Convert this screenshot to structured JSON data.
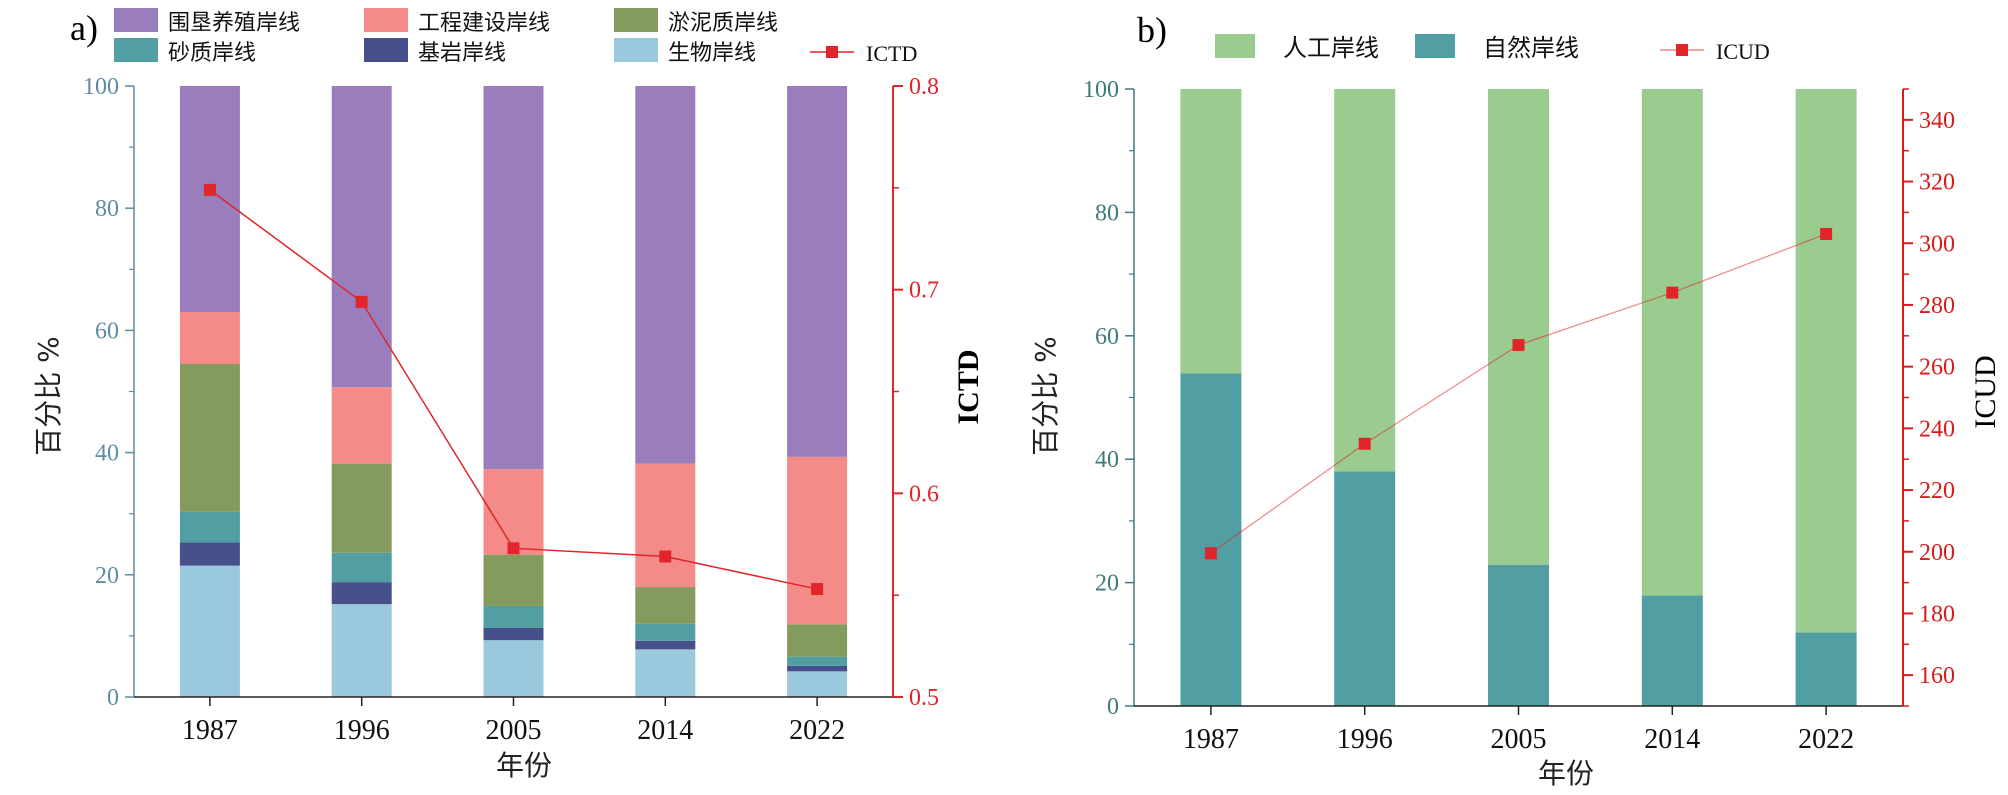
{
  "chart_data": [
    {
      "panel_label": "a)",
      "type": "bar",
      "stacked": true,
      "categories": [
        "1987",
        "1996",
        "2005",
        "2014",
        "2022"
      ],
      "xlabel": "年份",
      "ylabel": "百分比 %",
      "ylim": [
        0,
        100
      ],
      "yticks": [
        0,
        20,
        40,
        60,
        80,
        100
      ],
      "y2label": "ICTD",
      "y2lim": [
        0.5,
        0.8
      ],
      "y2ticks": [
        "0.5",
        "0.6",
        "0.7",
        "0.8"
      ],
      "legend_placement": "top",
      "series": [
        {
          "name": "生物岸线",
          "color": "#9ac8dd",
          "values": [
            21.5,
            15.2,
            9.3,
            7.8,
            4.2
          ]
        },
        {
          "name": "基岩岸线",
          "color": "#47508a",
          "values": [
            3.8,
            3.6,
            2.0,
            1.4,
            0.9
          ]
        },
        {
          "name": "砂质岸线",
          "color": "#519ea3",
          "values": [
            5.0,
            4.8,
            3.6,
            2.8,
            1.5
          ]
        },
        {
          "name": "淤泥质岸线",
          "color": "#849b5e",
          "values": [
            24.2,
            14.6,
            8.4,
            6.0,
            5.3
          ]
        },
        {
          "name": "工程建设岸线",
          "color": "#f48b88",
          "values": [
            8.5,
            12.5,
            14.0,
            20.2,
            27.4
          ]
        },
        {
          "name": "围垦养殖岸线",
          "color": "#997dbd",
          "values": [
            37.0,
            49.3,
            62.7,
            61.8,
            60.7
          ]
        }
      ],
      "line_series": {
        "name": "ICTD",
        "color": "#e0262a",
        "values": [
          0.749,
          0.694,
          0.573,
          0.569,
          0.553
        ]
      }
    },
    {
      "panel_label": "b)",
      "type": "bar",
      "stacked": true,
      "categories": [
        "1987",
        "1996",
        "2005",
        "2014",
        "2022"
      ],
      "xlabel": "年份",
      "ylabel": "百分比 %",
      "ylim": [
        0,
        100
      ],
      "yticks": [
        0,
        20,
        40,
        60,
        80,
        100
      ],
      "y2label": "ICUD",
      "y2lim": [
        150,
        350
      ],
      "y2ticks": [
        160,
        180,
        200,
        220,
        240,
        260,
        280,
        300,
        320,
        340
      ],
      "legend_placement": "top",
      "series": [
        {
          "name": "自然岸线",
          "color": "#519ea3",
          "values": [
            53.9,
            38.0,
            22.9,
            17.9,
            11.9
          ]
        },
        {
          "name": "人工岸线",
          "color": "#9acb8f",
          "values": [
            46.1,
            62.0,
            77.1,
            82.1,
            88.1
          ]
        }
      ],
      "line_series": {
        "name": "ICUD",
        "color": "#e0262a",
        "values": [
          199.5,
          235.0,
          267.0,
          284.0,
          303.0
        ]
      }
    }
  ]
}
